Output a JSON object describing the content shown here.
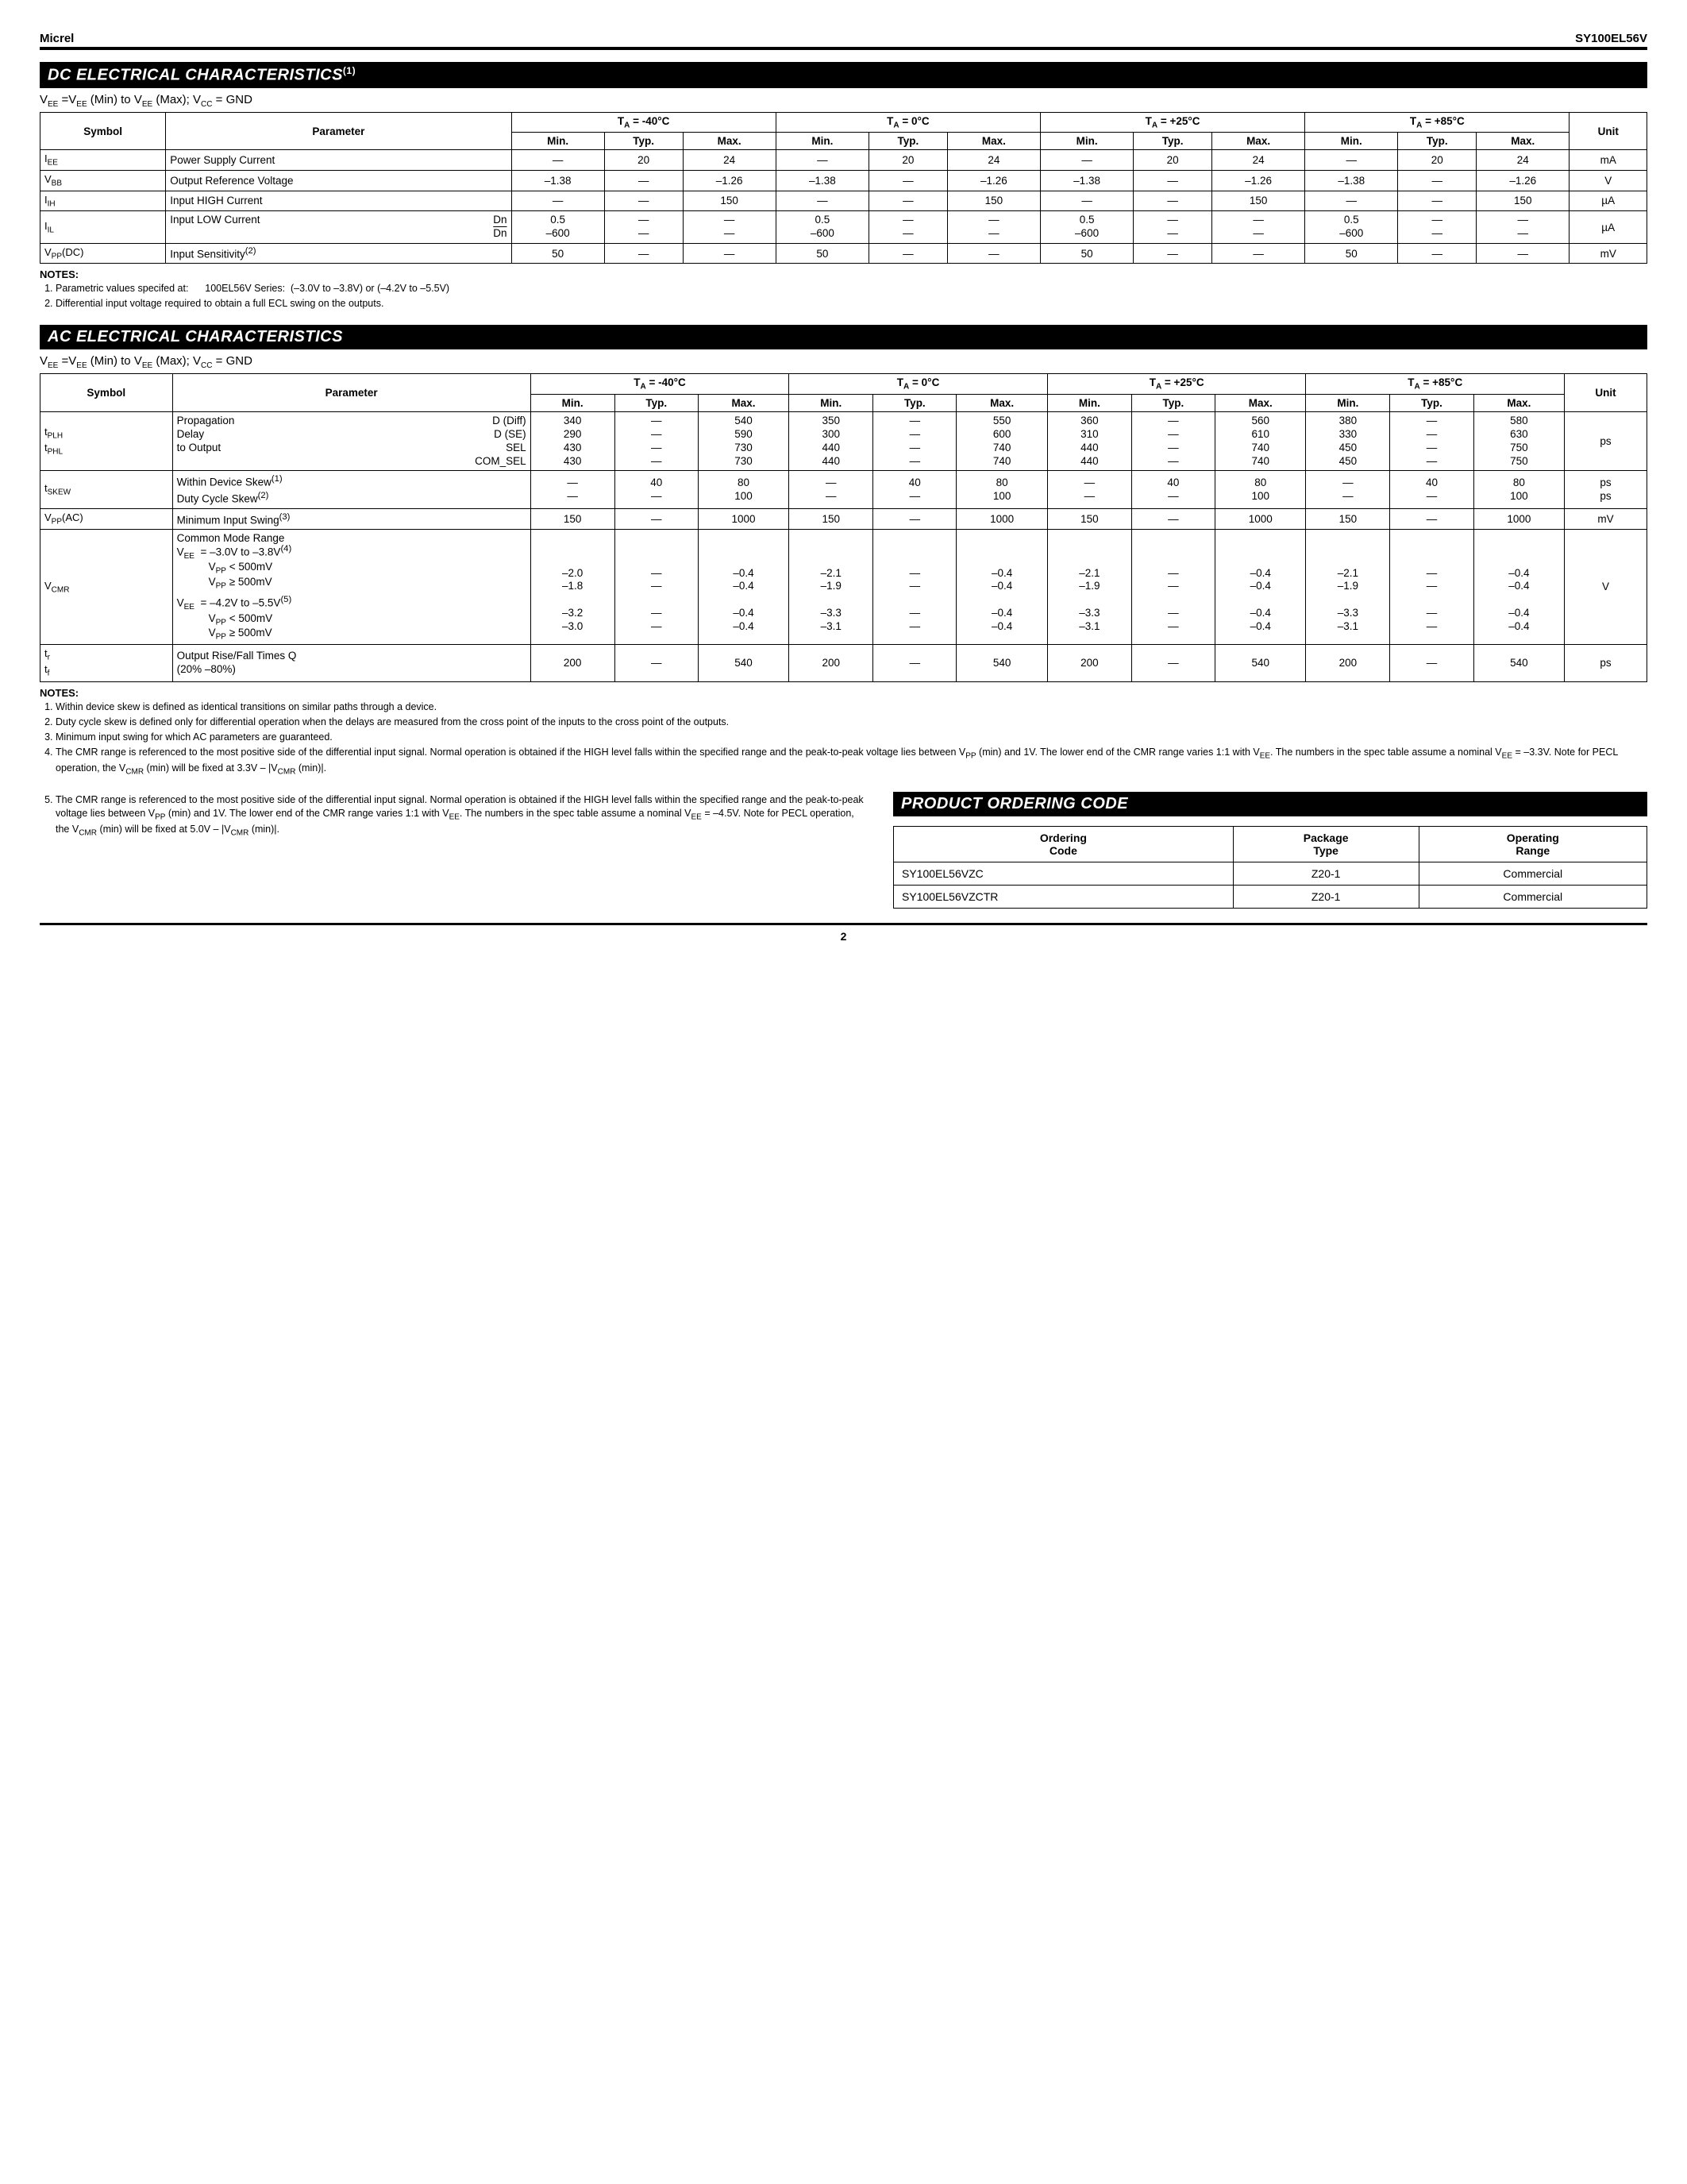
{
  "header": {
    "left": "Micrel",
    "right": "SY100EL56V"
  },
  "section_dc": {
    "title": "DC ELECTRICAL CHARACTERISTICS",
    "title_sup": "(1)",
    "condition_html": "V<sub>EE</sub> =V<sub>EE</sub> (Min) to V<sub>EE</sub> (Max); V<sub>CC</sub> = GND",
    "temp_headers": [
      "T<sub>A</sub> = -40°C",
      "T<sub>A</sub> = 0°C",
      "T<sub>A</sub> = +25°C",
      "T<sub>A</sub> = +85°C"
    ],
    "sub_headers": [
      "Min.",
      "Typ.",
      "Max."
    ],
    "col_symbol": "Symbol",
    "col_param": "Parameter",
    "col_unit": "Unit",
    "rows": [
      {
        "sym": "I<sub>EE</sub>",
        "param": "Power Supply Current",
        "vals": [
          "—",
          "20",
          "24",
          "—",
          "20",
          "24",
          "—",
          "20",
          "24",
          "—",
          "20",
          "24"
        ],
        "unit": "mA"
      },
      {
        "sym": "V<sub>BB</sub>",
        "param": "Output Reference Voltage",
        "vals": [
          "–1.38",
          "—",
          "–1.26",
          "–1.38",
          "—",
          "–1.26",
          "–1.38",
          "—",
          "–1.26",
          "–1.38",
          "—",
          "–1.26"
        ],
        "unit": "V"
      },
      {
        "sym": "I<sub>IH</sub>",
        "param": "Input HIGH Current",
        "vals": [
          "—",
          "—",
          "150",
          "—",
          "—",
          "150",
          "—",
          "—",
          "150",
          "—",
          "—",
          "150"
        ],
        "unit": "µA"
      },
      {
        "sym": "I<sub>IL</sub>",
        "param_html": "<div class='param-multi'><span class='pl'>Input LOW Current</span><span class='pr stack'><span>Dn</span><span class='overline'>Dn</span></span></div>",
        "vals_html": [
          "<span class='stack'><span>0.5</span><span>–600</span></span>",
          "<span class='stack'><span>—</span><span>—</span></span>",
          "<span class='stack'><span>—</span><span>—</span></span>",
          "<span class='stack'><span>0.5</span><span>–600</span></span>",
          "<span class='stack'><span>—</span><span>—</span></span>",
          "<span class='stack'><span>—</span><span>—</span></span>",
          "<span class='stack'><span>0.5</span><span>–600</span></span>",
          "<span class='stack'><span>—</span><span>—</span></span>",
          "<span class='stack'><span>—</span><span>—</span></span>",
          "<span class='stack'><span>0.5</span><span>–600</span></span>",
          "<span class='stack'><span>—</span><span>—</span></span>",
          "<span class='stack'><span>—</span><span>—</span></span>"
        ],
        "unit": "µA"
      },
      {
        "sym": "V<sub>PP</sub>(DC)",
        "param": "Input Sensitivity<sup>(2)</sup>",
        "vals": [
          "50",
          "—",
          "—",
          "50",
          "—",
          "—",
          "50",
          "—",
          "—",
          "50",
          "—",
          "—"
        ],
        "unit": "mV"
      }
    ],
    "notes": [
      "Parametric values specifed at:&nbsp;&nbsp;&nbsp;&nbsp;&nbsp;&nbsp;100EL56V Series:&nbsp;&nbsp;(–3.0V to –3.8V) or (–4.2V to –5.5V)",
      "Differential input voltage required to obtain a full ECL swing on the outputs."
    ]
  },
  "section_ac": {
    "title": "AC ELECTRICAL CHARACTERISTICS",
    "condition_html": "V<sub>EE</sub> =V<sub>EE</sub> (Min) to V<sub>EE</sub> (Max); V<sub>CC</sub> = GND",
    "rows": [
      {
        "sym": "<span class='stack'><span>t<sub>PLH</sub></span><span>t<sub>PHL</sub></span></span>",
        "param_html": "<div class='param-multi'><span class='pl stack'><span>Propagation</span><span>Delay</span><span>to Output</span><span>&nbsp;</span></span><span class='pr stack'><span>D (Diff)</span><span>D (SE)</span><span>SEL</span><span>COM_SEL</span></span></div>",
        "vals_html": [
          "<span class='stack'><span>340</span><span>290</span><span>430</span><span>430</span></span>",
          "<span class='stack'><span>—</span><span>—</span><span>—</span><span>—</span></span>",
          "<span class='stack'><span>540</span><span>590</span><span>730</span><span>730</span></span>",
          "<span class='stack'><span>350</span><span>300</span><span>440</span><span>440</span></span>",
          "<span class='stack'><span>—</span><span>—</span><span>—</span><span>—</span></span>",
          "<span class='stack'><span>550</span><span>600</span><span>740</span><span>740</span></span>",
          "<span class='stack'><span>360</span><span>310</span><span>440</span><span>440</span></span>",
          "<span class='stack'><span>—</span><span>—</span><span>—</span><span>—</span></span>",
          "<span class='stack'><span>560</span><span>610</span><span>740</span><span>740</span></span>",
          "<span class='stack'><span>380</span><span>330</span><span>450</span><span>450</span></span>",
          "<span class='stack'><span>—</span><span>—</span><span>—</span><span>—</span></span>",
          "<span class='stack'><span>580</span><span>630</span><span>750</span><span>750</span></span>"
        ],
        "unit": "ps"
      },
      {
        "sym": "t<sub>SKEW</sub>",
        "param_html": "<span class='stack'><span>Within Device Skew<sup>(1)</sup></span><span>Duty Cycle Skew<sup>(2)</sup></span></span>",
        "vals_html": [
          "<span class='stack'><span>—</span><span>—</span></span>",
          "<span class='stack'><span>40</span><span>—</span></span>",
          "<span class='stack'><span>80</span><span>100</span></span>",
          "<span class='stack'><span>—</span><span>—</span></span>",
          "<span class='stack'><span>40</span><span>—</span></span>",
          "<span class='stack'><span>80</span><span>100</span></span>",
          "<span class='stack'><span>—</span><span>—</span></span>",
          "<span class='stack'><span>40</span><span>—</span></span>",
          "<span class='stack'><span>80</span><span>100</span></span>",
          "<span class='stack'><span>—</span><span>—</span></span>",
          "<span class='stack'><span>40</span><span>—</span></span>",
          "<span class='stack'><span>80</span><span>100</span></span>"
        ],
        "unit": "<span class='stack'><span>ps</span><span>ps</span></span>"
      },
      {
        "sym": "V<sub>PP</sub>(AC)",
        "param": "Minimum Input Swing<sup>(3)</sup>",
        "vals": [
          "150",
          "—",
          "1000",
          "150",
          "—",
          "1000",
          "150",
          "—",
          "1000",
          "150",
          "—",
          "1000"
        ],
        "unit": "mV"
      },
      {
        "sym": "V<sub>CMR</sub>",
        "param_html": "<div style='text-align:left'><div>Common Mode Range</div><div>V<sub>EE</sub>&nbsp;&nbsp;= –3.0V to –3.8V<sup>(4)</sup></div><div style='padding-left:40px'>V<sub>PP</sub> &lt; 500mV</div><div style='padding-left:40px'>V<sub>PP</sub> ≥ 500mV</div><div style='margin-top:6px'>V<sub>EE</sub>&nbsp;&nbsp;= –4.2V to –5.5V<sup>(5)</sup></div><div style='padding-left:40px'>V<sub>PP</sub> &lt; 500mV</div><div style='padding-left:40px'>V<sub>PP</sub> ≥ 500mV</div></div>",
        "vals_html": [
          "<span class='stack'><span>&nbsp;</span><span>&nbsp;</span><span>–2.0</span><span>–1.8</span><span>&nbsp;</span><span>–3.2</span><span>–3.0</span></span>",
          "<span class='stack'><span>&nbsp;</span><span>&nbsp;</span><span>—</span><span>—</span><span>&nbsp;</span><span>—</span><span>—</span></span>",
          "<span class='stack'><span>&nbsp;</span><span>&nbsp;</span><span>–0.4</span><span>–0.4</span><span>&nbsp;</span><span>–0.4</span><span>–0.4</span></span>",
          "<span class='stack'><span>&nbsp;</span><span>&nbsp;</span><span>–2.1</span><span>–1.9</span><span>&nbsp;</span><span>–3.3</span><span>–3.1</span></span>",
          "<span class='stack'><span>&nbsp;</span><span>&nbsp;</span><span>—</span><span>—</span><span>&nbsp;</span><span>—</span><span>—</span></span>",
          "<span class='stack'><span>&nbsp;</span><span>&nbsp;</span><span>–0.4</span><span>–0.4</span><span>&nbsp;</span><span>–0.4</span><span>–0.4</span></span>",
          "<span class='stack'><span>&nbsp;</span><span>&nbsp;</span><span>–2.1</span><span>–1.9</span><span>&nbsp;</span><span>–3.3</span><span>–3.1</span></span>",
          "<span class='stack'><span>&nbsp;</span><span>&nbsp;</span><span>—</span><span>—</span><span>&nbsp;</span><span>—</span><span>—</span></span>",
          "<span class='stack'><span>&nbsp;</span><span>&nbsp;</span><span>–0.4</span><span>–0.4</span><span>&nbsp;</span><span>–0.4</span><span>–0.4</span></span>",
          "<span class='stack'><span>&nbsp;</span><span>&nbsp;</span><span>–2.1</span><span>–1.9</span><span>&nbsp;</span><span>–3.3</span><span>–3.1</span></span>",
          "<span class='stack'><span>&nbsp;</span><span>&nbsp;</span><span>—</span><span>—</span><span>&nbsp;</span><span>—</span><span>—</span></span>",
          "<span class='stack'><span>&nbsp;</span><span>&nbsp;</span><span>–0.4</span><span>–0.4</span><span>&nbsp;</span><span>–0.4</span><span>–0.4</span></span>"
        ],
        "unit": "V"
      },
      {
        "sym": "<span class='stack'><span>t<sub>r</sub></span><span>t<sub>f</sub></span></span>",
        "param_html": "<span class='stack' style='text-align:left'><span>Output Rise/Fall Times Q</span><span>(20% –80%)</span></span>",
        "vals": [
          "200",
          "—",
          "540",
          "200",
          "—",
          "540",
          "200",
          "—",
          "540",
          "200",
          "—",
          "540"
        ],
        "unit": "ps"
      }
    ],
    "notes_full": [
      "Within device skew is defined as identical transitions on similar paths through a device.",
      "Duty cycle skew is defined only for differential operation when the delays are measured from the cross point of the inputs to the cross point of the outputs.",
      "Minimum input swing for which AC parameters are guaranteed.",
      "The CMR range is referenced to the most positive side of the differential input signal. Normal operation is obtained if the HIGH level falls within the specified range and the peak-to-peak voltage lies between V<sub>PP</sub> (min) and 1V. The lower end of the CMR range varies 1:1 with V<sub>EE</sub>. The numbers in the spec table assume a nominal V<sub>EE</sub> = –3.3V. Note for PECL operation, the V<sub>CMR</sub> (min) will be fixed at 3.3V – |V<sub>CMR</sub> (min)|."
    ],
    "note5": "The CMR range is referenced to the most positive side of the differential input signal. Normal operation is obtained if the HIGH level falls within the specified range and the peak-to-peak voltage lies between V<sub>PP</sub> (min) and 1V. The lower end of the CMR range varies 1:1 with V<sub>EE</sub>. The numbers in the spec table assume a nominal V<sub>EE</sub> = –4.5V. Note for PECL operation, the V<sub>CMR</sub> (min) will be fixed at 5.0V – |V<sub>CMR</sub> (min)|."
  },
  "section_order": {
    "title": "PRODUCT ORDERING CODE",
    "headers": [
      "Ordering Code",
      "Package Type",
      "Operating Range"
    ],
    "rows": [
      [
        "SY100EL56VZC",
        "Z20-1",
        "Commercial"
      ],
      [
        "SY100EL56VZCTR",
        "Z20-1",
        "Commercial"
      ]
    ]
  },
  "notes_label": "NOTES:",
  "page_number": "2"
}
